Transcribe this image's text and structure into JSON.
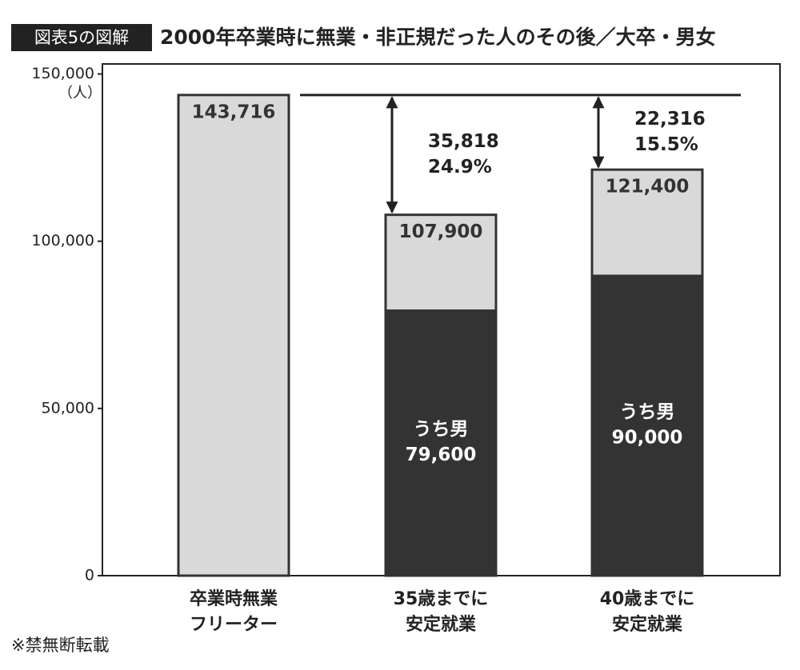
{
  "chart_data": {
    "type": "bar",
    "badge": "図表5の図解",
    "title": "2000年卒業時に無業・非正規だった人のその後／大卒・男女",
    "y_unit": "（人）",
    "categories": [
      [
        "卒業時無業",
        "フリーター"
      ],
      [
        "35歳までに",
        "安定就業"
      ],
      [
        "40歳までに",
        "安定就業"
      ]
    ],
    "values": [
      143716,
      107900,
      121400
    ],
    "value_labels": [
      "143,716",
      "107,900",
      "121,400"
    ],
    "color": "#d9d9d9",
    "male": {
      "label": "うち男",
      "color": "#333333",
      "values": [
        null,
        79600,
        90000
      ],
      "value_labels": [
        null,
        "79,600",
        "90,000"
      ]
    },
    "gaps": [
      null,
      {
        "value": 35818,
        "label": "35,818",
        "percent": 24.9,
        "percent_label": "24.9%"
      },
      {
        "value": 22316,
        "label": "22,316",
        "percent": 15.5,
        "percent_label": "15.5%"
      }
    ],
    "ylim": [
      0,
      153000
    ],
    "yticks": [
      0,
      {
        "value": 50000,
        "label": "50,000"
      },
      {
        "value": 100000,
        "label": "100,000"
      },
      {
        "value": 150000,
        "label": "150,000"
      }
    ],
    "footnote": "※禁無断転載"
  }
}
